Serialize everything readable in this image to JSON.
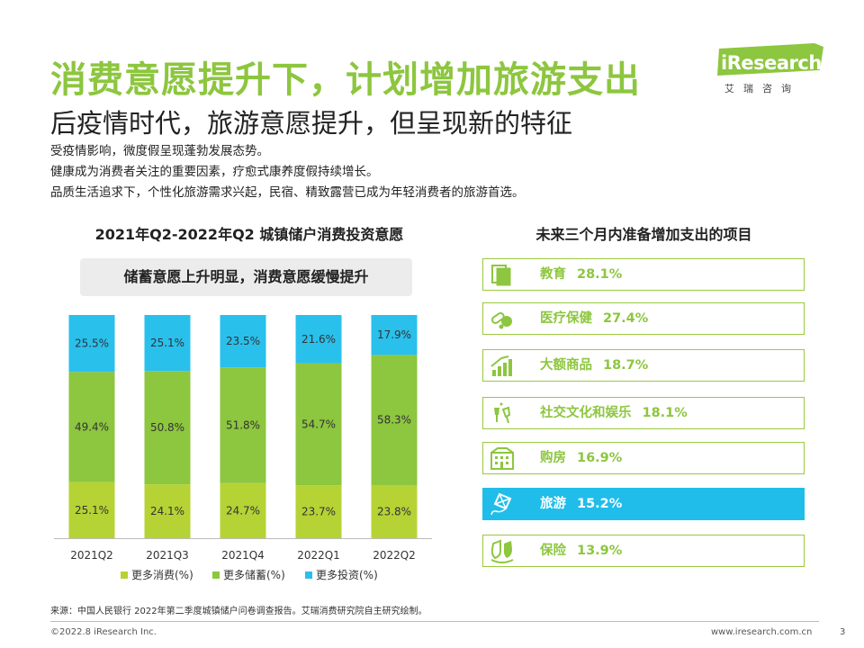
{
  "header": {
    "title": "消费意愿提升下，计划增加旅游支出",
    "subtitle": "后疫情时代，旅游意愿提升，但呈现新的特征",
    "bullets": [
      "受疫情影响，微度假呈现蓬勃发展态势。",
      "健康成为消费者关注的重要因素，疗愈式康养度假持续增长。",
      "品质生活追求下，个性化旅游需求兴起，民宿、精致露营已成为年轻消费者的旅游首选。"
    ]
  },
  "logo": {
    "text": "iResearch",
    "sub": "艾瑞咨询"
  },
  "chart_data": [
    {
      "type": "bar",
      "stacked": true,
      "title": "2021年Q2-2022年Q2 城镇储户消费投资意愿",
      "annotation": "储蓄意愿上升明显，消费意愿缓慢提升",
      "categories": [
        "2021Q2",
        "2021Q3",
        "2021Q4",
        "2022Q1",
        "2022Q2"
      ],
      "series": [
        {
          "name": "更多消费(%)",
          "color": "#b5d334",
          "values": [
            25.1,
            24.1,
            24.7,
            23.7,
            23.8
          ]
        },
        {
          "name": "更多储蓄(%)",
          "color": "#8dc63f",
          "values": [
            49.4,
            50.8,
            51.8,
            54.7,
            58.3
          ]
        },
        {
          "name": "更多投资(%)",
          "color": "#29c0ec",
          "values": [
            25.5,
            25.1,
            23.5,
            21.6,
            17.9
          ]
        }
      ],
      "data_labels": [
        [
          "25.1%",
          "24.1%",
          "24.7%",
          "23.7%",
          "23.8%"
        ],
        [
          "49.4%",
          "50.8%",
          "51.8%",
          "54.7%",
          "58.3%"
        ],
        [
          "25.5%",
          "25.1%",
          "23.5%",
          "21.6%",
          "17.9%"
        ]
      ],
      "ylim": [
        0,
        100
      ],
      "legend": "bottom",
      "grid": false
    },
    {
      "type": "table",
      "title": "未来三个月内准备增加支出的项目",
      "items": [
        {
          "label": "教育",
          "value": "28.1%",
          "icon": "book-icon",
          "highlight": false
        },
        {
          "label": "医疗保健",
          "value": "27.4%",
          "icon": "pills-icon",
          "highlight": false
        },
        {
          "label": "大额商品",
          "value": "18.7%",
          "icon": "bar-growth-icon",
          "highlight": false
        },
        {
          "label": "社交文化和娱乐",
          "value": "18.1%",
          "icon": "cheers-icon",
          "highlight": false
        },
        {
          "label": "购房",
          "value": "16.9%",
          "icon": "building-icon",
          "highlight": false
        },
        {
          "label": "旅游",
          "value": "15.2%",
          "icon": "kite-icon",
          "highlight": true
        },
        {
          "label": "保险",
          "value": "13.9%",
          "icon": "insurance-icon",
          "highlight": false
        }
      ]
    }
  ],
  "footer": {
    "source": "来源：中国人民银行 2022年第二季度城镇储户问卷调查报告。艾瑞消费研究院自主研究绘制。",
    "copyright": "©2022.8 iResearch Inc.",
    "website": "www.iresearch.com.cn",
    "page": "3"
  },
  "colors": {
    "accent": "#8dc63f",
    "highlight": "#20bdea",
    "lime": "#b5d334"
  }
}
